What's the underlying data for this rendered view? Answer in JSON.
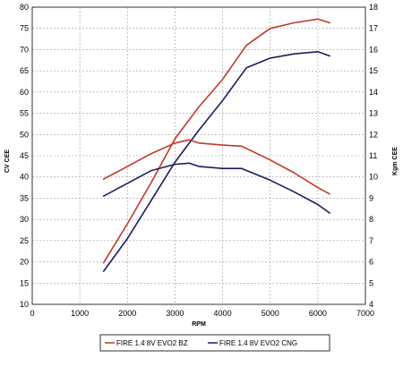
{
  "chart_data": {
    "type": "line",
    "title": "",
    "xlabel": "RPM",
    "ylabel_left": "CV CEE",
    "ylabel_right": "Kgm CEE",
    "xlim": [
      0,
      7000
    ],
    "ylim_left": [
      10,
      80
    ],
    "ylim_right": [
      4,
      18
    ],
    "xticks": [
      "0",
      "1000",
      "2000",
      "3000",
      "4000",
      "5000",
      "6000",
      "7000"
    ],
    "yticks_left": [
      "10",
      "15",
      "20",
      "25",
      "30",
      "35",
      "40",
      "45",
      "50",
      "55",
      "60",
      "65",
      "70",
      "75",
      "80"
    ],
    "yticks_right": [
      "4",
      "5",
      "6",
      "7",
      "8",
      "9",
      "10",
      "11",
      "12",
      "13",
      "14",
      "15",
      "16",
      "17",
      "18"
    ],
    "grid": true,
    "legend_position": "bottom",
    "colors": {
      "bz": "#c0392b",
      "cng": "#1a1f5c"
    },
    "series": [
      {
        "name": "FIRE 1.4 8V EVO2 BZ",
        "quantity": "power",
        "axis": "left",
        "color": "#c0392b",
        "x": [
          1500,
          2000,
          2500,
          3000,
          3500,
          4000,
          4500,
          5000,
          5500,
          6000,
          6250
        ],
        "y": [
          19.8,
          29,
          38.7,
          49,
          56.5,
          63,
          71,
          75,
          76.3,
          77.2,
          76.3
        ]
      },
      {
        "name": "FIRE 1.4 8V EVO2 CNG",
        "quantity": "power",
        "axis": "left",
        "color": "#1a1f5c",
        "x": [
          1500,
          2000,
          2500,
          3000,
          3500,
          4000,
          4500,
          5000,
          5500,
          6000,
          6250
        ],
        "y": [
          17.8,
          25.5,
          34.5,
          43.5,
          51,
          58,
          65.7,
          68,
          69,
          69.5,
          68.5
        ]
      },
      {
        "name": "FIRE 1.4 8V EVO2 BZ",
        "quantity": "torque",
        "axis": "right",
        "color": "#c0392b",
        "x": [
          1500,
          2000,
          2500,
          3000,
          3300,
          3500,
          4000,
          4400,
          5000,
          5500,
          6000,
          6250
        ],
        "y": [
          9.9,
          10.5,
          11.1,
          11.6,
          11.75,
          11.6,
          11.5,
          11.45,
          10.8,
          10.2,
          9.5,
          9.2
        ]
      },
      {
        "name": "FIRE 1.4 8V EVO2 CNG",
        "quantity": "torque",
        "axis": "right",
        "color": "#1a1f5c",
        "x": [
          1500,
          2000,
          2500,
          3000,
          3300,
          3500,
          4000,
          4400,
          5000,
          5500,
          6000,
          6250
        ],
        "y": [
          9.1,
          9.7,
          10.3,
          10.6,
          10.65,
          10.5,
          10.4,
          10.4,
          9.85,
          9.3,
          8.7,
          8.3
        ]
      }
    ]
  },
  "legend": {
    "items": [
      {
        "label": "FIRE 1.4 8V EVO2 BZ",
        "color": "#c0392b"
      },
      {
        "label": "FIRE 1.4 8V EVO2 CNG",
        "color": "#1a1f5c"
      }
    ]
  }
}
